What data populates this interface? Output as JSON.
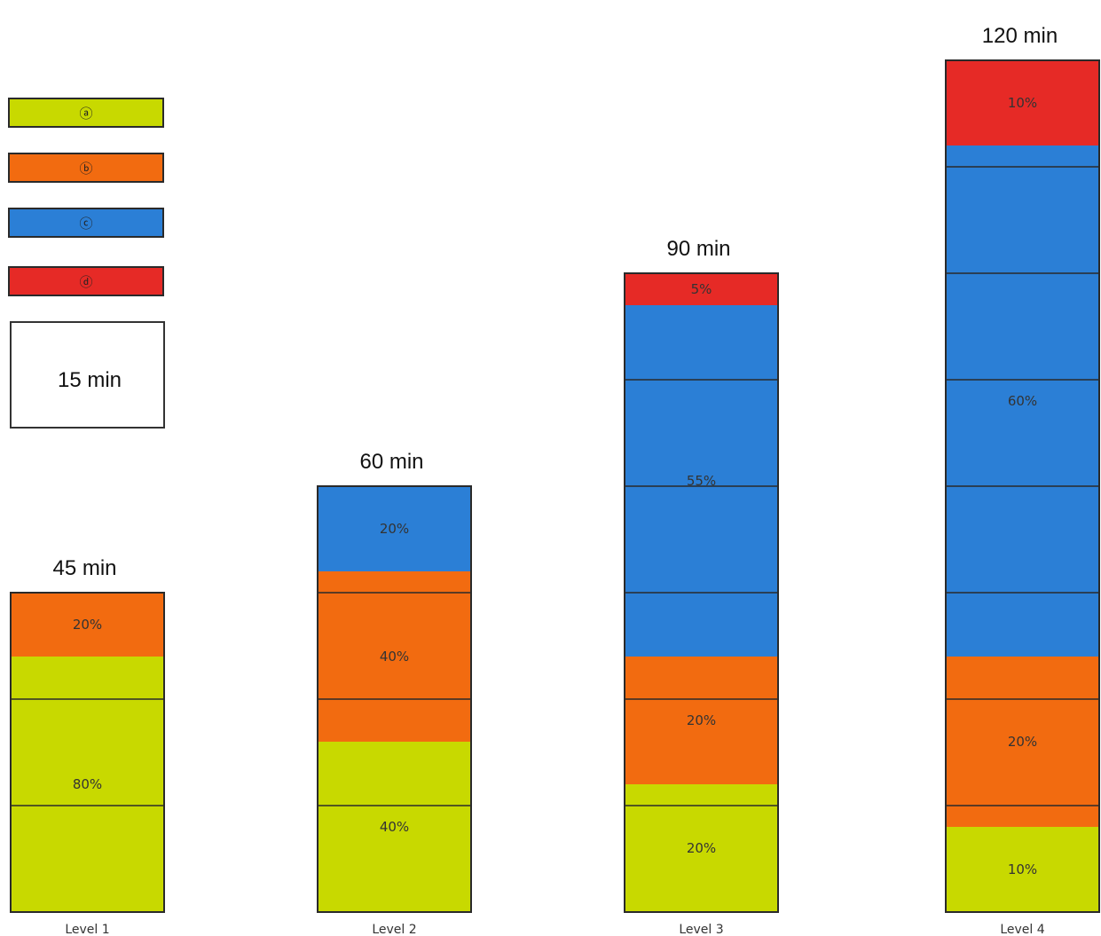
{
  "chart_data": {
    "type": "bar",
    "stacked": true,
    "categories": [
      "Level 1",
      "Level 2",
      "Level 3",
      "Level 4"
    ],
    "totals_min": [
      45,
      60,
      90,
      120
    ],
    "total_labels": [
      "45 min",
      "60 min",
      "90 min",
      "120 min"
    ],
    "series": [
      {
        "name": "ⓐ",
        "color": "#c8d900",
        "percent": [
          80,
          40,
          20,
          10
        ]
      },
      {
        "name": "ⓑ",
        "color": "#f26b10",
        "percent": [
          20,
          40,
          20,
          20
        ]
      },
      {
        "name": "ⓒ",
        "color": "#2b7fd6",
        "percent": [
          0,
          20,
          55,
          60
        ]
      },
      {
        "name": "ⓓ",
        "color": "#e62a26",
        "percent": [
          0,
          0,
          5,
          10
        ]
      }
    ],
    "segment_labels": [
      [
        "80%",
        "20%",
        "",
        ""
      ],
      [
        "40%",
        "40%",
        "20%",
        ""
      ],
      [
        "20%",
        "20%",
        "55%",
        "5%"
      ],
      [
        "10%",
        "20%",
        "60%",
        "10%"
      ]
    ],
    "unit_block_minutes": 15,
    "unit_block_label": "15 min",
    "ylim": [
      0,
      120
    ]
  }
}
